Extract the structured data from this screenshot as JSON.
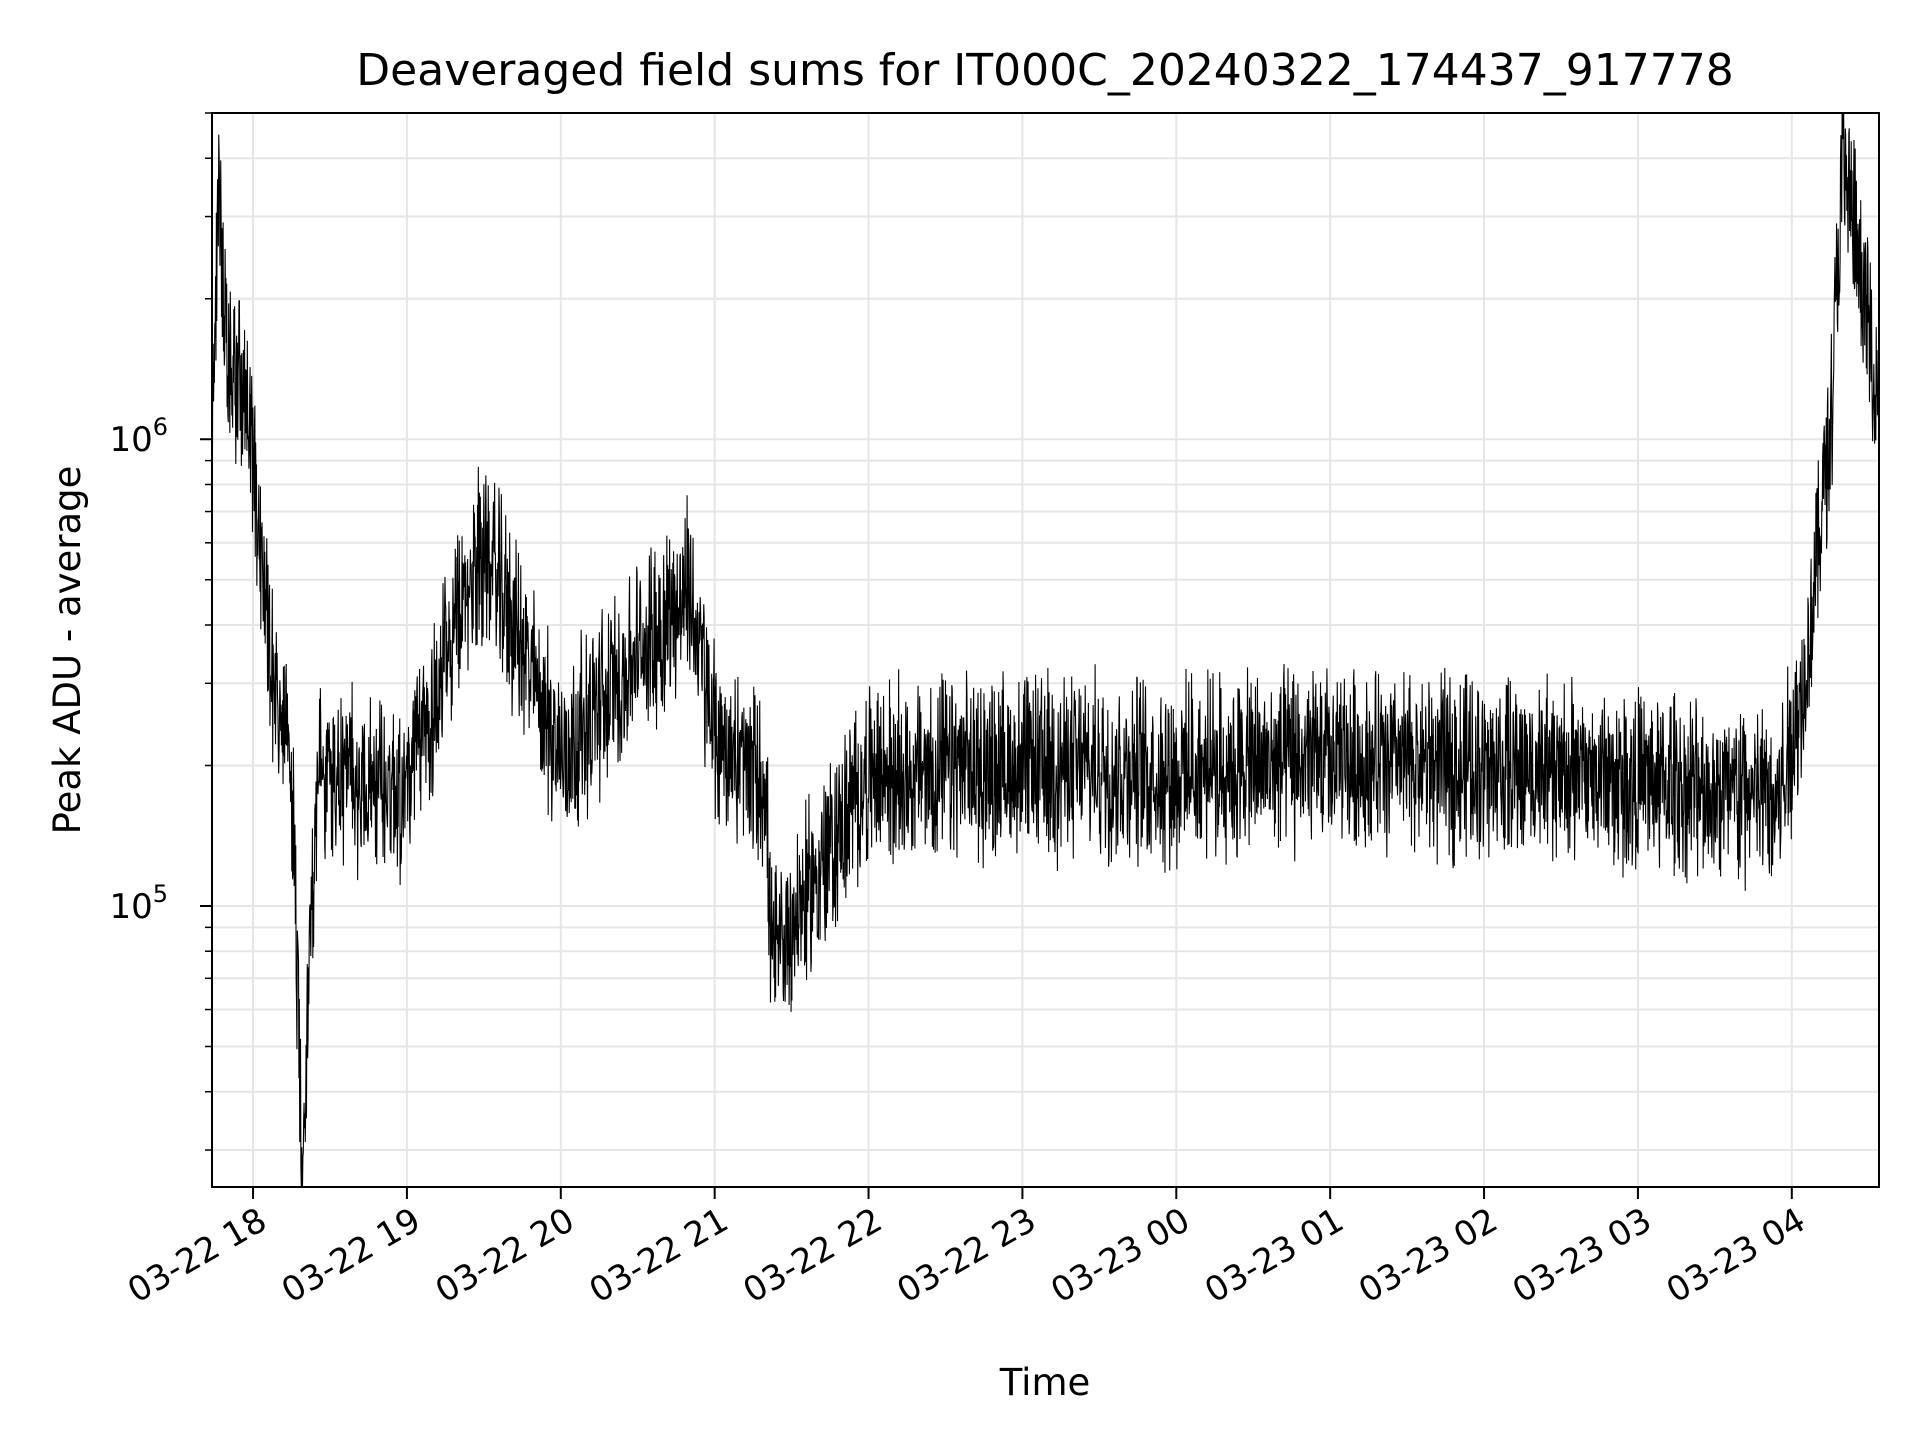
{
  "chart_data": {
    "type": "line",
    "title": "Deaveraged field sums for IT000C_20240322_174437_917778",
    "xlabel": "Time",
    "ylabel": "Peak ADU - average",
    "yscale": "log",
    "ylim": [
      25000,
      5000000
    ],
    "xlim": [
      "03-22 17:44",
      "03-23 04:34"
    ],
    "grid": true,
    "x_ticks": [
      "03-22 18",
      "03-22 19",
      "03-22 20",
      "03-22 21",
      "03-22 22",
      "03-22 23",
      "03-23 00",
      "03-23 01",
      "03-23 02",
      "03-23 03",
      "03-23 04"
    ],
    "y_ticks": [
      {
        "base": "10",
        "exp": "5",
        "value": 100000
      },
      {
        "base": "10",
        "exp": "6",
        "value": 1000000
      }
    ],
    "line_color": "#000000",
    "series": [
      {
        "values_summary_points": [
          {
            "x": "03-22 17:44",
            "y": 1100000
          },
          {
            "x": "03-22 17:47",
            "y": 3500000
          },
          {
            "x": "03-22 17:50",
            "y": 1300000
          },
          {
            "x": "03-22 17:55",
            "y": 1400000
          },
          {
            "x": "03-22 18:00",
            "y": 900000
          },
          {
            "x": "03-22 18:05",
            "y": 450000
          },
          {
            "x": "03-22 18:10",
            "y": 250000
          },
          {
            "x": "03-22 18:15",
            "y": 200000
          },
          {
            "x": "03-22 18:19",
            "y": 30000
          },
          {
            "x": "03-22 18:25",
            "y": 190000
          },
          {
            "x": "03-22 19:00",
            "y": 180000
          },
          {
            "x": "03-22 19:30",
            "y": 600000
          },
          {
            "x": "03-22 20:00",
            "y": 210000
          },
          {
            "x": "03-22 20:50",
            "y": 480000
          },
          {
            "x": "03-22 21:00",
            "y": 230000
          },
          {
            "x": "03-22 21:20",
            "y": 180000
          },
          {
            "x": "03-22 21:22",
            "y": 75000
          },
          {
            "x": "03-22 22:00",
            "y": 190000
          },
          {
            "x": "03-22 23:00",
            "y": 200000
          },
          {
            "x": "03-23 00:00",
            "y": 195000
          },
          {
            "x": "03-23 01:00",
            "y": 205000
          },
          {
            "x": "03-23 02:00",
            "y": 200000
          },
          {
            "x": "03-23 03:00",
            "y": 185000
          },
          {
            "x": "03-23 03:55",
            "y": 170000
          },
          {
            "x": "03-23 04:05",
            "y": 300000
          },
          {
            "x": "03-23 04:15",
            "y": 1100000
          },
          {
            "x": "03-23 04:20",
            "y": 4000000
          },
          {
            "x": "03-23 04:34",
            "y": 1200000
          }
        ]
      }
    ]
  }
}
